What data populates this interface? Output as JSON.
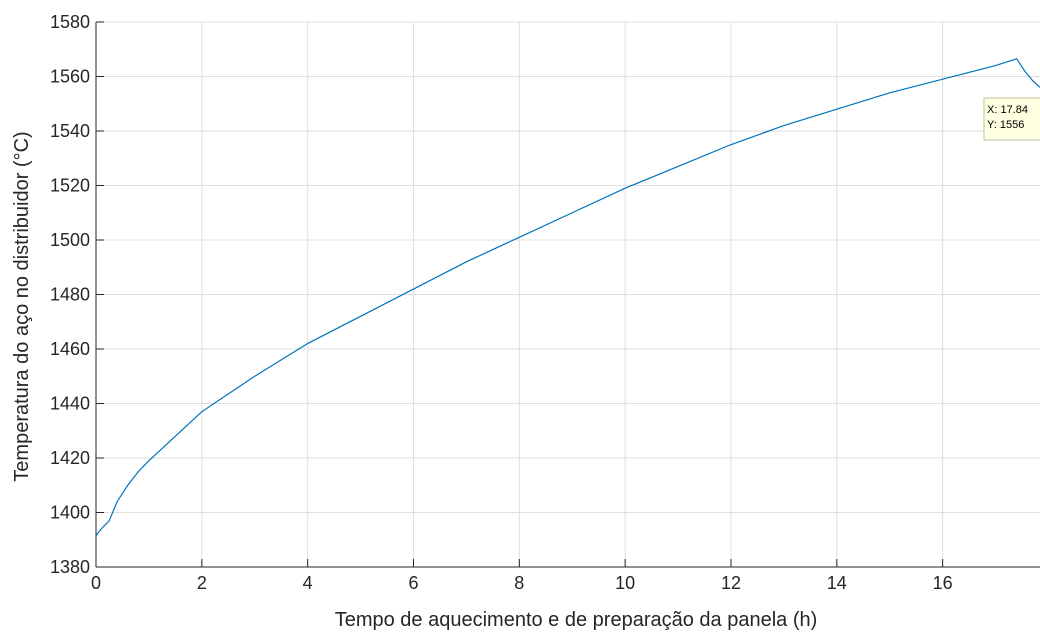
{
  "colors": {
    "series": "#0072BD",
    "grid": "#DFDFDF",
    "axis": "#262626",
    "datatip_fill": "#FFFFE1",
    "datatip_border": "#C0C0A0"
  },
  "chart_data": {
    "type": "line",
    "title": "",
    "xlabel": "Tempo de aquecimento e de preparação da panela (h)",
    "ylabel": "Temperatura do aço no distribuidor (°C)",
    "xlim": [
      0,
      17.84
    ],
    "ylim": [
      1380,
      1580
    ],
    "xticks": [
      0,
      2,
      4,
      6,
      8,
      10,
      12,
      14,
      16
    ],
    "yticks": [
      1380,
      1400,
      1420,
      1440,
      1460,
      1480,
      1500,
      1520,
      1540,
      1560,
      1580
    ],
    "grid": true,
    "series": [
      {
        "x": [
          0,
          0.1,
          0.2,
          0.25,
          0.4,
          0.6,
          0.8,
          1.0,
          1.5,
          2.0,
          3.0,
          4.0,
          5.0,
          6.0,
          7.0,
          8.0,
          9.0,
          10.0,
          11.0,
          12.0,
          13.0,
          14.0,
          15.0,
          16.0,
          17.0,
          17.4,
          17.55,
          17.7,
          17.84
        ],
        "y": [
          1391.5,
          1394,
          1396,
          1397,
          1404,
          1410,
          1415,
          1419,
          1428,
          1437,
          1450,
          1462,
          1472,
          1482,
          1492,
          1501,
          1510,
          1519,
          1527,
          1535,
          1542,
          1548,
          1554,
          1559,
          1564,
          1566.5,
          1562,
          1558.5,
          1556
        ]
      }
    ],
    "datatip": {
      "x_text": "X: 17.84",
      "y_text": "Y: 1556"
    }
  }
}
